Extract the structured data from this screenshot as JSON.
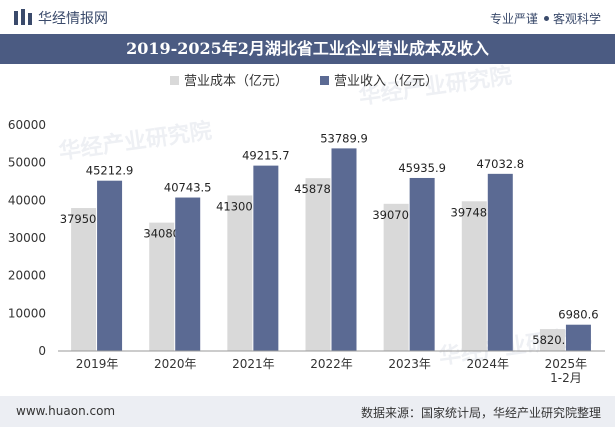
{
  "header": {
    "brand": "华经情报网",
    "slogan_left": "专业严谨",
    "slogan_right": "客观科学"
  },
  "title": "2019-2025年2月湖北省工业企业营业成本及收入",
  "footer": {
    "url": "www.huaon.com",
    "source": "数据来源：国家统计局，华经产业研究院整理"
  },
  "watermark": "华经产业研究院",
  "colors": {
    "cost": "#d9d9d9",
    "revenue": "#5b6a93",
    "title_bg": "#4b5b82",
    "footer_bg": "#eceef3"
  },
  "chart_data": {
    "type": "bar",
    "categories": [
      "2019年",
      "2020年",
      "2021年",
      "2022年",
      "2023年",
      "2024年",
      "2025年\n1-2月"
    ],
    "series": [
      {
        "name": "营业成本（亿元）",
        "values": [
          37950.4,
          34080,
          41300.3,
          45878.5,
          39070.7,
          39748.3,
          5820.6
        ],
        "labels": [
          "37950.4",
          "34080",
          "41300.3",
          "45878.5",
          "39070.7",
          "39748.3",
          "5820.6"
        ]
      },
      {
        "name": "营业收入（亿元）",
        "values": [
          45212.9,
          40743.5,
          49215.7,
          53789.9,
          45935.9,
          47032.8,
          6980.6
        ],
        "labels": [
          "45212.9",
          "40743.5",
          "49215.7",
          "53789.9",
          "45935.9",
          "47032.8",
          "6980.6"
        ]
      }
    ],
    "ylim": [
      0,
      60000
    ],
    "yticks": [
      0,
      10000,
      20000,
      30000,
      40000,
      50000,
      60000
    ],
    "grid": false,
    "legend_position": "top-center"
  }
}
